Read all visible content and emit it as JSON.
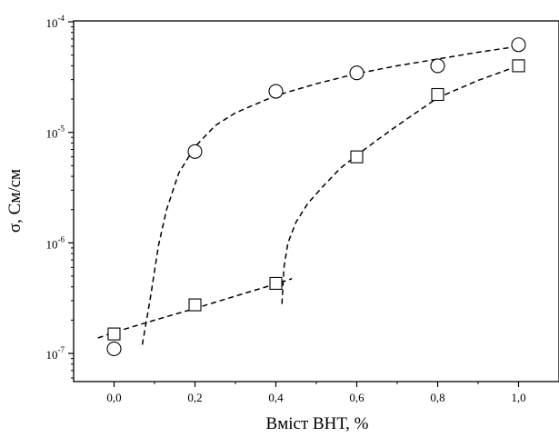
{
  "chart_data": {
    "type": "scatter",
    "title": "",
    "xlabel": "Вміст ВНТ, %",
    "ylabel": "σ, См/см",
    "xlim": [
      -0.1,
      1.1
    ],
    "ylim": [
      1e-07,
      0.0001
    ],
    "yscale": "log",
    "grid": false,
    "legend": "none",
    "xticks": [
      0.0,
      0.2,
      0.4,
      0.6,
      0.8,
      1.0
    ],
    "xtick_labels": [
      "0,0",
      "0,2",
      "0,4",
      "0,6",
      "0,8",
      "1,0"
    ],
    "yticks": [
      {
        "value": 1e-07,
        "base": "10",
        "exp": "-7"
      },
      {
        "value": 1e-06,
        "base": "10",
        "exp": "-6"
      },
      {
        "value": 1e-05,
        "base": "10",
        "exp": "-5"
      },
      {
        "value": 0.0001,
        "base": "10",
        "exp": "-4"
      }
    ],
    "series": [
      {
        "marker": "circle",
        "x": [
          0.0,
          0.2,
          0.4,
          0.6,
          0.8,
          1.0
        ],
        "y": [
          1.1e-07,
          6.7e-06,
          2.35e-05,
          3.45e-05,
          4e-05,
          6.2e-05
        ]
      },
      {
        "marker": "square",
        "x": [
          0.0,
          0.2,
          0.4,
          0.6,
          0.8,
          1.0
        ],
        "y": [
          1.5e-07,
          2.75e-07,
          4.3e-07,
          6e-06,
          2.2e-05,
          4e-05
        ]
      }
    ],
    "fit_curves": [
      {
        "style": "dashed",
        "x": [
          0.07,
          0.09,
          0.11,
          0.13,
          0.16,
          0.2,
          0.25,
          0.3,
          0.4,
          0.5,
          0.6,
          0.7,
          0.8,
          0.9,
          1.0
        ],
        "y": [
          1.2e-07,
          3.2e-07,
          9.5e-07,
          2e-06,
          4.3e-06,
          7.4e-06,
          1.15e-05,
          1.5e-05,
          2.15e-05,
          2.75e-05,
          3.4e-05,
          4e-05,
          4.6e-05,
          5.3e-05,
          6e-05
        ]
      },
      {
        "style": "dashed",
        "x": [
          -0.04,
          0.0,
          0.1,
          0.2,
          0.3,
          0.4,
          0.44
        ],
        "y": [
          1.38e-07,
          1.55e-07,
          2e-07,
          2.55e-07,
          3.3e-07,
          4.25e-07,
          4.75e-07
        ]
      },
      {
        "style": "dashed",
        "x": [
          0.415,
          0.42,
          0.43,
          0.45,
          0.48,
          0.52,
          0.56,
          0.6,
          0.65,
          0.7,
          0.8,
          0.9,
          1.0
        ],
        "y": [
          2.8e-07,
          6e-07,
          1e-06,
          1.55e-06,
          2.3e-06,
          3.35e-06,
          4.75e-06,
          6.2e-06,
          8.5e-06,
          1.15e-05,
          2.05e-05,
          2.95e-05,
          4e-05
        ]
      }
    ]
  }
}
